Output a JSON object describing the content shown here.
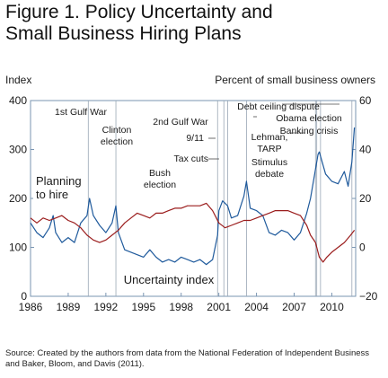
{
  "figure_title_line1": "Figure 1. Policy Uncertainty and",
  "figure_title_line2": "Small Business Hiring Plans",
  "source_note": "Source: Created by the authors from data from the National Federation of Independent Business and Baker, Bloom, and Davis (2011).",
  "colors": {
    "uncertainty": "#1f5a9c",
    "hiring": "#9b1d1d",
    "frame": "#7a95b2"
  },
  "chart_data": {
    "type": "line",
    "title": "Policy Uncertainty and Small Business Hiring Plans",
    "xlim": [
      1986,
      2011.9
    ],
    "x_ticks": [
      1986,
      1989,
      1992,
      1995,
      1998,
      2001,
      2004,
      2007,
      2010
    ],
    "left_axis": {
      "label": "Index",
      "ylim": [
        0,
        400
      ],
      "ticks": [
        0,
        100,
        200,
        300,
        400
      ]
    },
    "right_axis": {
      "label": "Percent of small business owners",
      "ylim": [
        -20,
        60
      ],
      "ticks": [
        -20,
        0,
        20,
        40,
        60
      ]
    },
    "series": [
      {
        "name": "Uncertainty index",
        "axis": "left",
        "x": [
          1986,
          1986.5,
          1987,
          1987.5,
          1987.8,
          1988,
          1988.5,
          1989,
          1989.5,
          1990,
          1990.5,
          1990.7,
          1991,
          1991.5,
          1992,
          1992.5,
          1992.8,
          1993,
          1993.5,
          1994,
          1994.5,
          1995,
          1995.5,
          1996,
          1996.5,
          1997,
          1997.5,
          1998,
          1998.5,
          1999,
          1999.5,
          2000,
          2000.5,
          2000.9,
          2001,
          2001.3,
          2001.7,
          2002,
          2002.5,
          2003,
          2003.2,
          2003.5,
          2004,
          2004.5,
          2005,
          2005.5,
          2006,
          2006.5,
          2007,
          2007.5,
          2008,
          2008.3,
          2008.7,
          2008.9,
          2009,
          2009.5,
          2010,
          2010.5,
          2011,
          2011.3,
          2011.6,
          2011.8
        ],
        "values": [
          150,
          130,
          120,
          140,
          165,
          130,
          110,
          120,
          110,
          150,
          165,
          200,
          165,
          145,
          130,
          150,
          185,
          130,
          95,
          90,
          85,
          80,
          95,
          80,
          70,
          75,
          70,
          80,
          75,
          70,
          75,
          65,
          75,
          125,
          175,
          195,
          185,
          160,
          165,
          205,
          235,
          180,
          175,
          165,
          130,
          125,
          135,
          130,
          115,
          130,
          170,
          200,
          260,
          290,
          295,
          250,
          235,
          230,
          255,
          225,
          275,
          345
        ]
      },
      {
        "name": "Planning to hire",
        "axis": "right",
        "x": [
          1986,
          1986.5,
          1987,
          1987.5,
          1988,
          1988.5,
          1989,
          1989.5,
          1990,
          1990.5,
          1991,
          1991.5,
          1992,
          1992.5,
          1993,
          1993.5,
          1994,
          1994.5,
          1995,
          1995.5,
          1996,
          1996.5,
          1997,
          1997.5,
          1998,
          1998.5,
          1999,
          1999.5,
          2000,
          2000.5,
          2001,
          2001.5,
          2002,
          2002.5,
          2003,
          2003.5,
          2004,
          2004.5,
          2005,
          2005.5,
          2006,
          2006.5,
          2007,
          2007.5,
          2008,
          2008.3,
          2008.7,
          2009,
          2009.3,
          2009.6,
          2010,
          2010.5,
          2011,
          2011.5,
          2011.8
        ],
        "values": [
          12,
          10,
          12,
          11,
          12,
          13,
          11,
          10,
          8,
          5,
          3,
          2,
          3,
          5,
          7,
          10,
          12,
          14,
          13,
          12,
          14,
          14,
          15,
          16,
          16,
          17,
          17,
          17,
          18,
          15,
          10,
          8,
          9,
          10,
          11,
          11,
          12,
          13,
          14,
          15,
          15,
          15,
          14,
          13,
          9,
          5,
          2,
          -4,
          -6,
          -4,
          -2,
          0,
          2,
          5,
          7
        ]
      }
    ],
    "annotations": [
      {
        "text": "1st Gulf War",
        "x": 1990.6
      },
      {
        "text": "Clinton",
        "x": 1992.8
      },
      {
        "text": "election",
        "x": 1992.8
      },
      {
        "text": "2nd Gulf War",
        "x": 2003.2
      },
      {
        "text": "9/11",
        "x": 2001.7
      },
      {
        "text": "Tax cuts",
        "x": 2001.4
      },
      {
        "text": "Bush",
        "x": 2000.9
      },
      {
        "text": "election",
        "x": 2000.9
      },
      {
        "text": "Debt ceiling dispute",
        "x": 2011.6
      },
      {
        "text": "Obama election",
        "x": 2008.8
      },
      {
        "text": "Banking crisis",
        "x": 2008.8
      },
      {
        "text": "Lehman,",
        "x": 2008.7
      },
      {
        "text": "TARP",
        "x": 2008.7
      },
      {
        "text": "Stimulus",
        "x": 2009.1
      },
      {
        "text": "debate",
        "x": 2009.1
      },
      {
        "text": "Uncertainty index",
        "x": 1997.5
      },
      {
        "text": "Planning",
        "x": 1986.7
      },
      {
        "text": "to hire",
        "x": 1986.7
      }
    ]
  }
}
